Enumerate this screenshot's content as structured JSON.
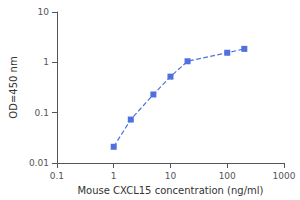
{
  "chart_data": {
    "type": "line",
    "x": [
      1.0,
      2.0,
      5.0,
      10.0,
      20.0,
      100.0,
      200.0
    ],
    "values": [
      0.021,
      0.073,
      0.23,
      0.52,
      1.05,
      1.55,
      1.85
    ],
    "xlabel": "Mouse CXCL15 concentration (ng/ml)",
    "ylabel": "OD=450 nm",
    "log": true,
    "xlim": [
      0.1,
      1000
    ],
    "ylim": [
      0.01,
      10
    ],
    "xticks": [
      0.1,
      1,
      10,
      100,
      1000
    ],
    "yticks": [
      0.01,
      0.1,
      1,
      10
    ],
    "marker": "square",
    "line_style": "dashed",
    "grid": false
  }
}
